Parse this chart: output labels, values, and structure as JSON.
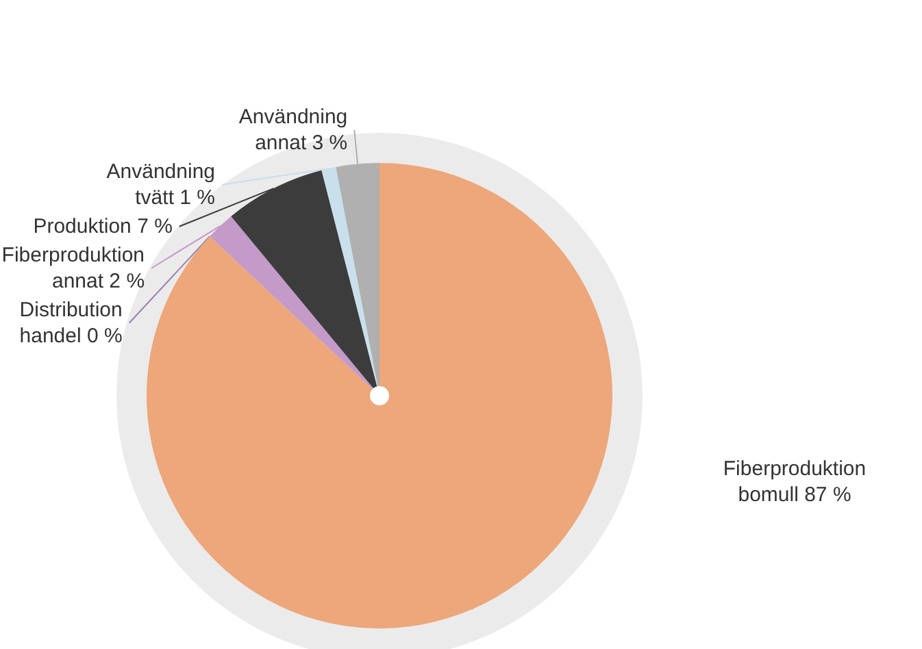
{
  "chart_data": {
    "type": "pie",
    "categories": [
      "Fiberproduktion bomull",
      "Distribution handel",
      "Fiberproduktion annat",
      "Produktion",
      "Användning tvätt",
      "Användning annat"
    ],
    "values": [
      87,
      0,
      2,
      7,
      1,
      3
    ],
    "value_labels": [
      "87 %",
      "0 %",
      "2 %",
      "7 %",
      "1 %",
      "3 %"
    ],
    "colors": [
      "#eda77a",
      "#9a7fb0",
      "#c49ac8",
      "#3c3c3c",
      "#c9dfec",
      "#b0b0b0"
    ],
    "legend": false
  }
}
